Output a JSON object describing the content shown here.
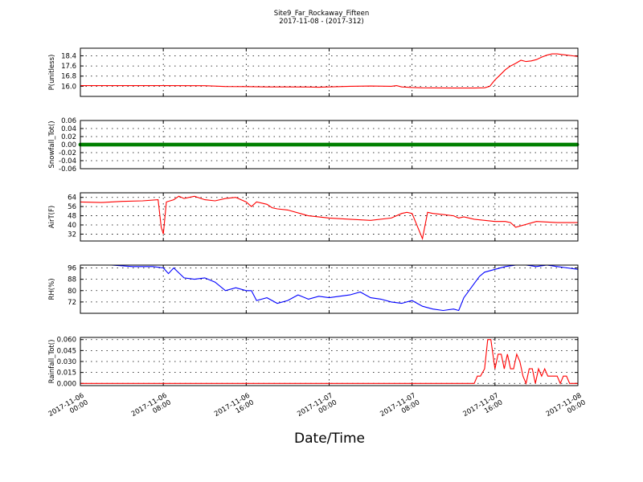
{
  "title_line1": "Site9_Far_Rockaway_Fifteen",
  "title_line2": "2017-11-08 - (2017-312)",
  "xlabel": "Date/Time",
  "x_ticks": [
    {
      "line1": "2017-11-06",
      "line2": "00:00",
      "hours": 0
    },
    {
      "line1": "2017-11-06",
      "line2": "08:00",
      "hours": 8
    },
    {
      "line1": "2017-11-06",
      "line2": "16:00",
      "hours": 16
    },
    {
      "line1": "2017-11-07",
      "line2": "00:00",
      "hours": 24
    },
    {
      "line1": "2017-11-07",
      "line2": "08:00",
      "hours": 32
    },
    {
      "line1": "2017-11-07",
      "line2": "16:00",
      "hours": 40
    },
    {
      "line1": "2017-11-08",
      "line2": "00:00",
      "hours": 48
    }
  ],
  "chart_data": [
    {
      "type": "line",
      "ylabel": "P(unitless)",
      "color": "#ff0000",
      "ylim": [
        15.2,
        19.0
      ],
      "yticks": [
        "16.0",
        "16.8",
        "17.6",
        "18.4"
      ],
      "grid": true,
      "x_hours": [
        0,
        4,
        8,
        12,
        14,
        16,
        18,
        20,
        22,
        23,
        24,
        26,
        28,
        30,
        30.5,
        31,
        32,
        33,
        34,
        36,
        38,
        39,
        39.5,
        40,
        40.5,
        41,
        41.5,
        42,
        42.5,
        43,
        43.5,
        44,
        44.5,
        45,
        45.5,
        46,
        46.5,
        47,
        47.5,
        48
      ],
      "values": [
        16.05,
        16.05,
        16.05,
        16.04,
        15.98,
        15.97,
        15.95,
        15.95,
        15.94,
        15.92,
        15.95,
        16.0,
        16.02,
        16.0,
        16.05,
        15.95,
        15.9,
        15.88,
        15.87,
        15.86,
        15.86,
        15.88,
        16.0,
        16.5,
        16.9,
        17.3,
        17.6,
        17.8,
        18.05,
        17.95,
        18.0,
        18.1,
        18.3,
        18.45,
        18.55,
        18.55,
        18.5,
        18.45,
        18.4,
        18.35
      ]
    },
    {
      "type": "scatter",
      "ylabel": "Snowfall_Tot()",
      "color": "#008000",
      "ylim": [
        -0.06,
        0.06
      ],
      "yticks": [
        "-0.06",
        "-0.04",
        "-0.02",
        "0.00",
        "0.02",
        "0.04",
        "0.06"
      ],
      "grid": true,
      "x_range": [
        0,
        48
      ],
      "constant_value": 0.0
    },
    {
      "type": "line",
      "ylabel": "AirT(F)",
      "color": "#ff0000",
      "ylim": [
        26,
        68
      ],
      "yticks": [
        "32",
        "40",
        "48",
        "56",
        "64"
      ],
      "grid": true,
      "x_hours": [
        0,
        2,
        4,
        6,
        7.5,
        7.8,
        8,
        8.3,
        9,
        9.5,
        10,
        10.5,
        11,
        12,
        13,
        14,
        15,
        15.5,
        16,
        16.5,
        17,
        18,
        18.5,
        19,
        20,
        22,
        24,
        26,
        28,
        30,
        31,
        31.5,
        32,
        33,
        33.5,
        34,
        35,
        36,
        36.5,
        37,
        38,
        40,
        41,
        41.5,
        42,
        44,
        46,
        48
      ],
      "values": [
        60,
        59.5,
        60.5,
        61,
        62,
        38,
        32,
        60,
        62,
        65,
        63,
        64,
        65,
        62,
        61,
        63,
        64,
        62,
        60,
        56,
        60,
        58,
        55,
        54,
        53,
        48,
        46,
        45,
        44,
        46,
        50,
        51,
        50,
        28,
        51,
        50,
        49,
        48,
        46,
        47,
        45,
        43,
        43,
        42,
        38,
        43,
        42,
        42
      ]
    },
    {
      "type": "line",
      "ylabel": "RH(%)",
      "color": "#0000ff",
      "ylim": [
        64,
        98
      ],
      "yticks": [
        "72",
        "80",
        "88",
        "96"
      ],
      "grid": true,
      "x_hours": [
        3,
        5,
        7,
        8,
        8.5,
        9,
        10,
        11,
        12,
        13,
        14,
        15,
        16,
        16.5,
        17,
        18,
        19,
        20,
        21,
        22,
        23,
        24,
        25,
        26,
        27,
        28,
        29,
        30,
        31,
        32,
        33,
        34,
        35,
        36,
        36.5,
        37,
        38,
        38.5,
        39,
        40,
        41,
        42,
        43,
        44,
        45,
        46,
        47,
        48
      ],
      "values": [
        98,
        97,
        97,
        96,
        92,
        96,
        89,
        88,
        89,
        86,
        80,
        82,
        80,
        80,
        73,
        75,
        71,
        73,
        77,
        74,
        76,
        75,
        76,
        77,
        79,
        75,
        74,
        72,
        71,
        73,
        69,
        67,
        66,
        67,
        66,
        75,
        85,
        90,
        93,
        95,
        97,
        98,
        98,
        97,
        98,
        97,
        96,
        95
      ]
    },
    {
      "type": "line",
      "ylabel": "Rainfall_Tot()",
      "color": "#ff0000",
      "ylim": [
        -0.003,
        0.063
      ],
      "yticks": [
        "0.000",
        "0.015",
        "0.030",
        "0.045",
        "0.060"
      ],
      "grid": true,
      "x_hours": [
        0,
        5,
        10,
        15,
        20,
        25,
        30,
        35,
        38,
        38.3,
        38.6,
        39,
        39.3,
        39.6,
        40,
        40.3,
        40.6,
        40.9,
        41.2,
        41.5,
        41.8,
        42.1,
        42.4,
        42.7,
        43,
        43.3,
        43.6,
        43.9,
        44.2,
        44.5,
        44.8,
        45.1,
        45.4,
        45.7,
        46,
        46.3,
        46.6,
        46.9,
        47.2,
        47.5,
        48
      ],
      "values": [
        0,
        0,
        0,
        0,
        0,
        0,
        0,
        0,
        0,
        0.01,
        0.01,
        0.02,
        0.06,
        0.06,
        0.02,
        0.04,
        0.04,
        0.02,
        0.04,
        0.02,
        0.02,
        0.04,
        0.03,
        0.01,
        0.0,
        0.02,
        0.02,
        0.0,
        0.02,
        0.01,
        0.02,
        0.01,
        0.01,
        0.01,
        0.01,
        0.0,
        0.01,
        0.01,
        0.0,
        0.0,
        0.0
      ]
    }
  ]
}
